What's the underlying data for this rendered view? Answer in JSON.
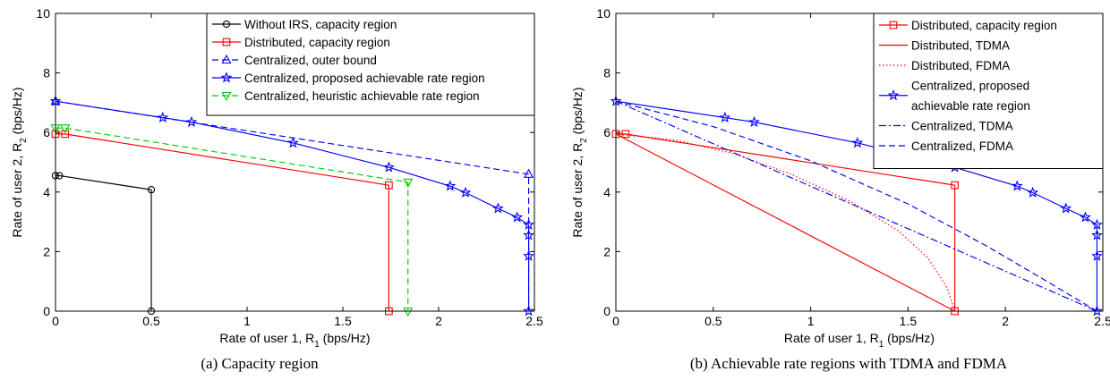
{
  "chart_data": [
    {
      "type": "line",
      "caption": "(a) Capacity region",
      "xlabel": "Rate of user 1, R",
      "xlabel_sub": "1",
      "xlabel_tail": " (bps/Hz)",
      "ylabel": "Rate of user 2, R",
      "ylabel_sub": "2",
      "ylabel_tail": " (bps/Hz)",
      "xlim": [
        0,
        2.5
      ],
      "ylim": [
        0,
        10
      ],
      "xticks": [
        0,
        0.5,
        1,
        1.5,
        2,
        2.5
      ],
      "xtick_labels": [
        "0",
        "0.5",
        "1",
        "1.5",
        "2",
        "2.5"
      ],
      "yticks": [
        0,
        2,
        4,
        6,
        8,
        10
      ],
      "ytick_labels": [
        "0",
        "2",
        "4",
        "6",
        "8",
        "10"
      ],
      "grid": false,
      "legend_position": "top-right",
      "series": [
        {
          "name": "Without IRS, capacity region",
          "color": "#000000",
          "dash": "",
          "marker": "circle",
          "x": [
            0,
            0.02,
            0.5,
            0.5,
            0.5
          ],
          "y": [
            4.55,
            4.55,
            4.08,
            2.0,
            0.0
          ],
          "mx": [
            0,
            0.02,
            0.5,
            0.5
          ],
          "my": [
            4.55,
            4.55,
            4.08,
            0.0
          ]
        },
        {
          "name": "Distributed, capacity region",
          "color": "#ff0000",
          "dash": "",
          "marker": "square",
          "x": [
            0,
            0.05,
            1.74,
            1.74
          ],
          "y": [
            5.95,
            5.95,
            4.23,
            0.0
          ],
          "mx": [
            0,
            0.05,
            1.74,
            1.74
          ],
          "my": [
            5.95,
            5.95,
            4.23,
            0.0
          ]
        },
        {
          "name": "Centralized, outer bound",
          "color": "#0000ff",
          "dash": "7,4",
          "marker": "triangle-up",
          "x": [
            0,
            2.47,
            2.47
          ],
          "y": [
            7.05,
            4.6,
            0.0
          ],
          "mx": [
            0,
            2.47
          ],
          "my": [
            7.05,
            4.6
          ]
        },
        {
          "name": "Centralized, proposed achievable rate region",
          "color": "#0000ff",
          "dash": "",
          "marker": "star",
          "x": [
            0,
            0.56,
            0.71,
            1.24,
            1.74,
            2.06,
            2.14,
            2.31,
            2.41,
            2.47,
            2.47,
            2.47,
            2.47
          ],
          "y": [
            7.05,
            6.5,
            6.35,
            5.65,
            4.83,
            4.2,
            3.98,
            3.45,
            3.15,
            2.9,
            2.55,
            1.85,
            0.0
          ],
          "mx": [
            0,
            0.56,
            0.71,
            1.24,
            1.74,
            2.06,
            2.14,
            2.31,
            2.41,
            2.47,
            2.47,
            2.47,
            2.47
          ],
          "my": [
            7.05,
            6.5,
            6.35,
            5.65,
            4.83,
            4.2,
            3.98,
            3.45,
            3.15,
            2.9,
            2.55,
            1.85,
            0.0
          ]
        },
        {
          "name": "Centralized, heuristic achievable rate region",
          "color": "#00cc00",
          "dash": "7,4",
          "marker": "triangle-down",
          "x": [
            0,
            0.05,
            1.84,
            1.84
          ],
          "y": [
            6.15,
            6.15,
            4.33,
            0.0
          ],
          "mx": [
            0,
            0.05,
            1.84,
            1.84
          ],
          "my": [
            6.15,
            6.15,
            4.33,
            0.0
          ]
        }
      ]
    },
    {
      "type": "line",
      "caption": "(b) Achievable rate regions with TDMA and FDMA",
      "xlabel": "Rate of user 1, R",
      "xlabel_sub": "1",
      "xlabel_tail": " (bps/Hz)",
      "ylabel": "Rate of user 2, R",
      "ylabel_sub": "2",
      "ylabel_tail": " (bps/Hz)",
      "xlim": [
        0,
        2.5
      ],
      "ylim": [
        0,
        10
      ],
      "xticks": [
        0,
        0.5,
        1,
        1.5,
        2,
        2.5
      ],
      "xtick_labels": [
        "0",
        "0.5",
        "1",
        "1.5",
        "2",
        "2.5"
      ],
      "yticks": [
        0,
        2,
        4,
        6,
        8,
        10
      ],
      "ytick_labels": [
        "0",
        "2",
        "4",
        "6",
        "8",
        "10"
      ],
      "grid": false,
      "legend_position": "top-right",
      "series": [
        {
          "name": "Distributed, capacity region",
          "color": "#ff0000",
          "dash": "",
          "marker": "square",
          "x": [
            0,
            0.05,
            1.74,
            1.74
          ],
          "y": [
            5.95,
            5.95,
            4.23,
            0.0
          ],
          "mx": [
            0,
            0.05,
            1.74,
            1.74
          ],
          "my": [
            5.95,
            5.95,
            4.23,
            0.0
          ]
        },
        {
          "name": "Distributed, TDMA",
          "color": "#ff0000",
          "dash": "",
          "marker": "none",
          "x": [
            0,
            1.74
          ],
          "y": [
            5.95,
            0.0
          ],
          "mx": [],
          "my": []
        },
        {
          "name": "Distributed, FDMA",
          "color": "#ff0000",
          "dash": "1.5,2.5",
          "marker": "none",
          "x": [
            0,
            0.3,
            0.6,
            0.9,
            1.2,
            1.45,
            1.6,
            1.7,
            1.74
          ],
          "y": [
            5.95,
            5.75,
            5.3,
            4.6,
            3.7,
            2.7,
            1.8,
            0.8,
            0.0
          ],
          "mx": [],
          "my": []
        },
        {
          "name": "Centralized, proposed achievable rate region",
          "name_lines": [
            "Centralized, proposed",
            "achievable rate region"
          ],
          "color": "#0000ff",
          "dash": "",
          "marker": "star",
          "x": [
            0,
            0.56,
            0.71,
            1.24,
            1.74,
            2.06,
            2.14,
            2.31,
            2.41,
            2.47,
            2.47,
            2.47,
            2.47
          ],
          "y": [
            7.05,
            6.5,
            6.35,
            5.65,
            4.83,
            4.2,
            3.98,
            3.45,
            3.15,
            2.9,
            2.55,
            1.85,
            0.0
          ],
          "mx": [
            0,
            0.56,
            0.71,
            1.24,
            1.74,
            2.06,
            2.14,
            2.31,
            2.41,
            2.47,
            2.47,
            2.47,
            2.47
          ],
          "my": [
            7.05,
            6.5,
            6.35,
            5.65,
            4.83,
            4.2,
            3.98,
            3.45,
            3.15,
            2.9,
            2.55,
            1.85,
            0.0
          ]
        },
        {
          "name": "Centralized, TDMA",
          "color": "#0000ff",
          "dash": "8,3,2,3",
          "marker": "none",
          "x": [
            0,
            2.47
          ],
          "y": [
            7.05,
            0.0
          ],
          "mx": [],
          "my": []
        },
        {
          "name": "Centralized, FDMA",
          "color": "#0000ff",
          "dash": "7,4",
          "marker": "none",
          "x": [
            0,
            0.5,
            1.0,
            1.5,
            1.9,
            2.2,
            2.47
          ],
          "y": [
            7.05,
            6.2,
            5.05,
            3.6,
            2.2,
            1.05,
            0.0
          ],
          "mx": [],
          "my": []
        }
      ]
    }
  ]
}
